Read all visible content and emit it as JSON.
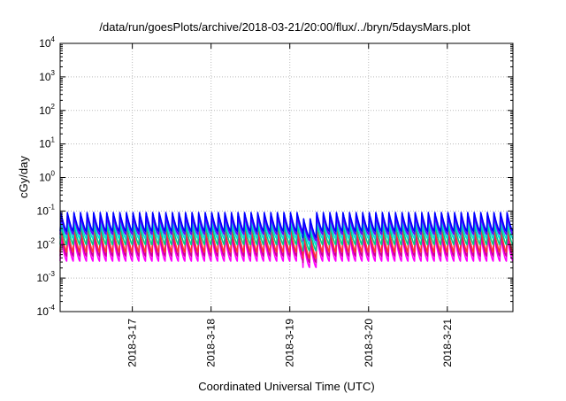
{
  "chart_data": {
    "type": "line",
    "title": "/data/run/goesPlots/archive/2018-03-21/20:00/flux/../bryn/5daysMars.plot",
    "xlabel": "Coordinated Universal Time (UTC)",
    "ylabel": "cGy/day",
    "yscale": "log",
    "ylim": [
      0.0001,
      10000
    ],
    "xlim": [
      "2018-03-16 02:00",
      "2018-03-21 20:00"
    ],
    "grid": true,
    "legend": "none",
    "x_ticks": [
      "2018-3-17",
      "2018-3-18",
      "2018-3-19",
      "2018-3-20",
      "2018-3-21"
    ],
    "y_ticks": [
      {
        "value": 0.0001,
        "base": "10",
        "exp": "-4"
      },
      {
        "value": 0.001,
        "base": "10",
        "exp": "-3"
      },
      {
        "value": 0.01,
        "base": "10",
        "exp": "-2"
      },
      {
        "value": 0.1,
        "base": "10",
        "exp": "-1"
      },
      {
        "value": 1,
        "base": "10",
        "exp": "0"
      },
      {
        "value": 10,
        "base": "10",
        "exp": "1"
      },
      {
        "value": 100,
        "base": "10",
        "exp": "2"
      },
      {
        "value": 1000,
        "base": "10",
        "exp": "3"
      },
      {
        "value": 10000,
        "base": "10",
        "exp": "4"
      }
    ],
    "pattern_period_hours": 2,
    "dip_event": {
      "start": "2018-03-19 04:00",
      "end": "2018-03-19 08:00",
      "factor": 0.65
    },
    "series": [
      {
        "color": "#ff00ff",
        "peak": 0.018,
        "trough": 0.0032
      },
      {
        "color": "#cc0099",
        "peak": 0.022,
        "trough": 0.0045
      },
      {
        "color": "#ff3333",
        "peak": 0.03,
        "trough": 0.006
      },
      {
        "color": "#00cc88",
        "peak": 0.04,
        "trough": 0.01
      },
      {
        "color": "#00dddd",
        "peak": 0.055,
        "trough": 0.015
      },
      {
        "color": "#6600ff",
        "peak": 0.07,
        "trough": 0.02
      },
      {
        "color": "#0000ff",
        "peak": 0.09,
        "trough": 0.025
      }
    ]
  }
}
